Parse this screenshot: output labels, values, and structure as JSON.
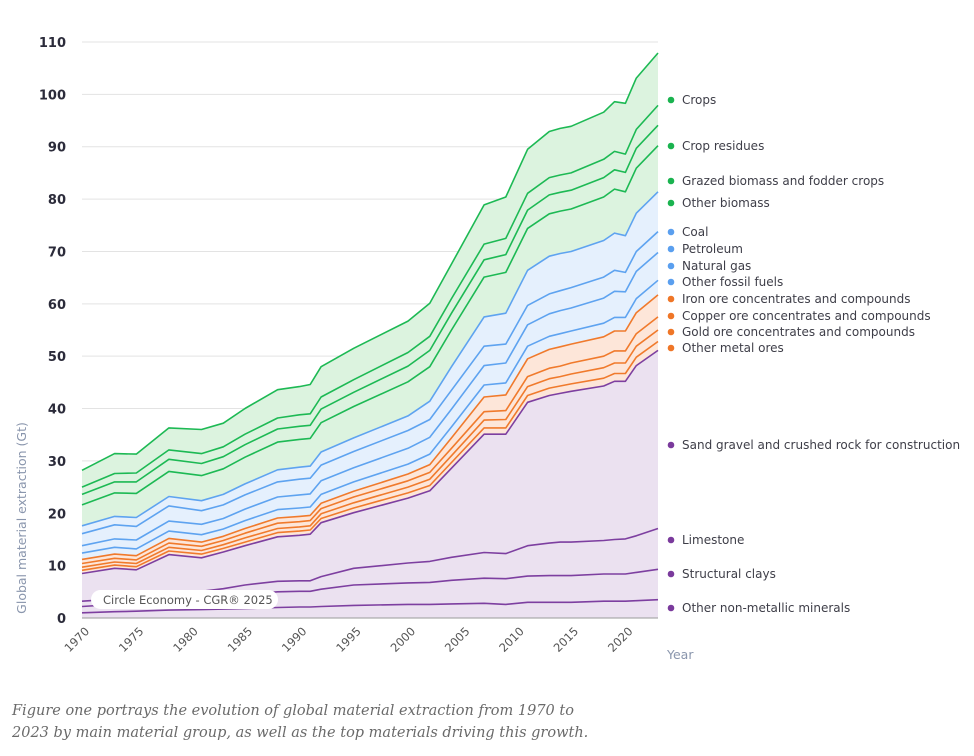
{
  "chart_data": {
    "type": "area",
    "stacked": true,
    "title": "",
    "xlabel": "Year",
    "ylabel": "Global material extraction (Gt)",
    "xlim": [
      1970,
      2023
    ],
    "ylim": [
      0,
      110
    ],
    "yticks": [
      0,
      10,
      20,
      30,
      40,
      50,
      60,
      70,
      80,
      90,
      100,
      110
    ],
    "xticks": [
      1970,
      1975,
      1980,
      1985,
      1990,
      1995,
      2000,
      2005,
      2010,
      2015,
      2020
    ],
    "grid": true,
    "legend_position": "right",
    "credit": "Circle Economy - CGR® 2025",
    "group_colors": {
      "biomass": {
        "line": "#1db954",
        "fill": "#dcf3df",
        "dot": "#1ab34f"
      },
      "fossil": {
        "line": "#5ea3f0",
        "fill": "#e5f0fd",
        "dot": "#5a9fef"
      },
      "metal": {
        "line": "#f07a2c",
        "fill": "#fde6d9",
        "dot": "#ef7627"
      },
      "nonmetallic": {
        "line": "#7d3fa0",
        "fill": "#ebe1f0",
        "dot": "#7a3a9c"
      }
    },
    "x": [
      1970,
      1973,
      1975,
      1978,
      1981,
      1983,
      1985,
      1988,
      1990,
      1991,
      1992,
      1995,
      2000,
      2002,
      2004,
      2007,
      2009,
      2011,
      2013,
      2014,
      2015,
      2018,
      2019,
      2020,
      2021,
      2023
    ],
    "cumulative_note": "Series values are per-material extraction in Gt (stacked bottom to top).",
    "series": [
      {
        "name": "Other non-metallic minerals",
        "group": "nonmetallic",
        "values": [
          1.0,
          1.2,
          1.3,
          1.5,
          1.6,
          1.7,
          1.8,
          2.0,
          2.1,
          2.1,
          2.2,
          2.4,
          2.6,
          2.6,
          2.7,
          2.8,
          2.6,
          3.0,
          3.0,
          3.0,
          3.0,
          3.2,
          3.2,
          3.2,
          3.3,
          3.5
        ]
      },
      {
        "name": "Structural clays",
        "group": "nonmetallic",
        "values": [
          1.2,
          1.4,
          1.6,
          1.9,
          2.2,
          2.4,
          2.7,
          3.0,
          3.0,
          3.0,
          3.3,
          3.9,
          4.1,
          4.2,
          4.5,
          4.8,
          4.9,
          5.0,
          5.1,
          5.1,
          5.1,
          5.2,
          5.2,
          5.2,
          5.4,
          5.8
        ]
      },
      {
        "name": "Limestone",
        "group": "nonmetallic",
        "values": [
          1.0,
          1.0,
          1.1,
          1.2,
          1.3,
          1.5,
          1.8,
          2.0,
          2.0,
          2.0,
          2.4,
          3.2,
          3.8,
          4.0,
          4.4,
          4.9,
          4.8,
          5.8,
          6.2,
          6.4,
          6.4,
          6.4,
          6.6,
          6.7,
          7.0,
          7.8
        ]
      },
      {
        "name": "Sand gravel and crushed rock for construction",
        "group": "nonmetallic",
        "values": [
          5.3,
          5.9,
          5.2,
          7.5,
          6.4,
          7.0,
          7.5,
          8.5,
          8.7,
          8.9,
          10.3,
          10.6,
          12.4,
          13.5,
          17.0,
          22.6,
          22.8,
          27.4,
          28.2,
          28.4,
          28.8,
          29.5,
          30.2,
          30.1,
          32.5,
          34.0
        ]
      },
      {
        "name": "Other metal ores",
        "group": "metal",
        "values": [
          0.6,
          0.6,
          0.6,
          0.7,
          0.7,
          0.7,
          0.7,
          0.8,
          0.8,
          0.8,
          0.8,
          0.9,
          1.0,
          1.0,
          1.1,
          1.2,
          1.2,
          1.3,
          1.4,
          1.4,
          1.4,
          1.5,
          1.5,
          1.5,
          1.6,
          1.7
        ]
      },
      {
        "name": "Gold ore concentrates and compounds",
        "group": "metal",
        "values": [
          0.6,
          0.6,
          0.6,
          0.7,
          0.7,
          0.7,
          0.8,
          0.8,
          0.8,
          0.8,
          0.9,
          1.0,
          1.1,
          1.2,
          1.3,
          1.5,
          1.6,
          1.7,
          1.8,
          1.8,
          1.9,
          2.0,
          2.0,
          2.0,
          2.1,
          2.2
        ]
      },
      {
        "name": "Copper ore concentrates and compounds",
        "group": "metal",
        "values": [
          0.7,
          0.7,
          0.7,
          0.8,
          0.8,
          0.8,
          0.9,
          1.0,
          1.0,
          1.0,
          1.0,
          1.1,
          1.2,
          1.3,
          1.4,
          1.6,
          1.7,
          1.9,
          2.0,
          2.0,
          2.1,
          2.2,
          2.3,
          2.3,
          2.4,
          2.5
        ]
      },
      {
        "name": "Iron ore concentrates and compounds",
        "group": "metal",
        "values": [
          0.8,
          0.8,
          0.8,
          0.9,
          0.8,
          0.8,
          0.9,
          1.0,
          1.0,
          1.0,
          1.0,
          1.1,
          1.3,
          1.5,
          2.0,
          2.8,
          3.0,
          3.4,
          3.6,
          3.7,
          3.6,
          3.7,
          3.8,
          3.8,
          4.0,
          4.2
        ]
      },
      {
        "name": "Other fossil fuels",
        "group": "fossil",
        "values": [
          1.2,
          1.3,
          1.3,
          1.4,
          1.4,
          1.4,
          1.5,
          1.6,
          1.6,
          1.6,
          1.7,
          1.8,
          1.9,
          2.0,
          2.1,
          2.3,
          2.3,
          2.4,
          2.5,
          2.5,
          2.5,
          2.6,
          2.6,
          2.6,
          2.7,
          2.8
        ]
      },
      {
        "name": "Natural gas",
        "group": "fossil",
        "values": [
          1.4,
          1.6,
          1.7,
          1.9,
          2.0,
          2.0,
          2.2,
          2.4,
          2.5,
          2.5,
          2.6,
          2.7,
          3.0,
          3.2,
          3.4,
          3.7,
          3.8,
          4.1,
          4.3,
          4.4,
          4.4,
          4.8,
          5.0,
          4.9,
          5.2,
          5.3
        ]
      },
      {
        "name": "Petroleum",
        "group": "fossil",
        "values": [
          2.3,
          2.7,
          2.6,
          2.9,
          2.6,
          2.6,
          2.7,
          2.9,
          3.0,
          3.0,
          3.0,
          3.1,
          3.4,
          3.4,
          3.6,
          3.7,
          3.6,
          3.7,
          3.8,
          3.8,
          3.9,
          4.0,
          4.0,
          3.7,
          3.8,
          4.0
        ]
      },
      {
        "name": "Coal",
        "group": "fossil",
        "values": [
          1.5,
          1.6,
          1.7,
          1.8,
          1.9,
          2.0,
          2.1,
          2.3,
          2.3,
          2.3,
          2.5,
          2.6,
          2.8,
          3.5,
          4.5,
          5.6,
          5.9,
          6.7,
          7.2,
          7.1,
          6.9,
          7.0,
          7.1,
          7.0,
          7.3,
          7.6
        ]
      },
      {
        "name": "Other biomass",
        "group": "biomass",
        "values": [
          4.0,
          4.5,
          4.6,
          4.8,
          4.8,
          4.9,
          5.1,
          5.3,
          5.3,
          5.3,
          5.6,
          6.0,
          6.5,
          6.6,
          7.0,
          7.6,
          7.8,
          8.0,
          8.1,
          8.1,
          8.1,
          8.3,
          8.4,
          8.4,
          8.6,
          8.8
        ]
      },
      {
        "name": "Grazed biomass and fodder crops",
        "group": "biomass",
        "values": [
          2.0,
          2.1,
          2.2,
          2.3,
          2.3,
          2.3,
          2.4,
          2.5,
          2.5,
          2.5,
          2.6,
          2.7,
          3.0,
          3.1,
          3.2,
          3.3,
          3.4,
          3.5,
          3.6,
          3.6,
          3.6,
          3.7,
          3.7,
          3.7,
          3.8,
          3.9
        ]
      },
      {
        "name": "Crop residues",
        "group": "biomass",
        "values": [
          1.4,
          1.6,
          1.7,
          1.8,
          1.9,
          1.9,
          2.0,
          2.1,
          2.2,
          2.2,
          2.3,
          2.4,
          2.6,
          2.7,
          2.8,
          3.0,
          3.1,
          3.2,
          3.3,
          3.3,
          3.3,
          3.5,
          3.5,
          3.5,
          3.6,
          3.8
        ]
      },
      {
        "name": "Crops",
        "group": "biomass",
        "values": [
          3.2,
          3.8,
          3.6,
          4.2,
          4.6,
          4.5,
          4.9,
          5.4,
          5.4,
          5.6,
          5.8,
          6.0,
          6.0,
          6.3,
          6.6,
          7.5,
          7.9,
          8.4,
          8.8,
          8.9,
          8.9,
          9.0,
          9.5,
          9.7,
          9.8,
          10.0
        ]
      }
    ],
    "legend_order": [
      "Crops",
      "Crop residues",
      "Grazed biomass and fodder crops",
      "Other biomass",
      "Coal",
      "Petroleum",
      "Natural gas",
      "Other fossil fuels",
      "Iron ore concentrates and compounds",
      "Copper ore concentrates and compounds",
      "Gold ore concentrates and compounds",
      "Other metal ores",
      "Sand gravel and crushed rock for construction",
      "Limestone",
      "Structural clays",
      "Other non-metallic minerals"
    ]
  },
  "caption": "Figure one portrays the evolution of global material extraction from 1970 to 2023 by main material group, as well as the top materials driving this growth."
}
